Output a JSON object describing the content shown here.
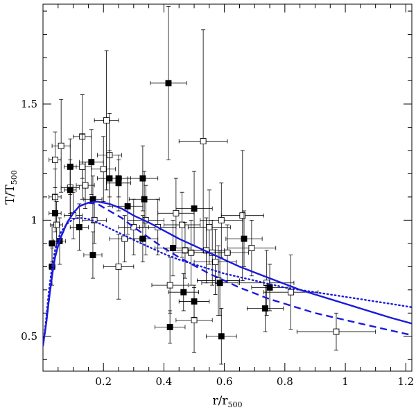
{
  "chart_data": {
    "type": "scatter",
    "title": "",
    "xlabel": "r/r",
    "xlabel_sub": "500",
    "ylabel": "T/T",
    "ylabel_sub": "500",
    "xlim": [
      0.0,
      1.22
    ],
    "ylim": [
      0.35,
      1.93
    ],
    "x_ticks": [
      {
        "v": 0.2,
        "label": "0.2"
      },
      {
        "v": 0.4,
        "label": "0.4"
      },
      {
        "v": 0.6,
        "label": "0.6"
      },
      {
        "v": 0.8,
        "label": "0.8"
      },
      {
        "v": 1.0,
        "label": "1"
      },
      {
        "v": 1.2,
        "label": "1.2"
      }
    ],
    "y_ticks": [
      {
        "v": 0.5,
        "label": "0.5"
      },
      {
        "v": 1.0,
        "label": "1"
      },
      {
        "v": 1.5,
        "label": "1.5"
      }
    ],
    "series": [
      {
        "name": "open squares",
        "style": "open",
        "points": [
          {
            "x": 0.04,
            "y": 1.26,
            "xerr": 0.02,
            "yerr": 0.12
          },
          {
            "x": 0.04,
            "y": 1.1,
            "xerr": 0.02,
            "yerr": 0.12
          },
          {
            "x": 0.045,
            "y": 0.98,
            "xerr": 0.02,
            "yerr": 0.1
          },
          {
            "x": 0.06,
            "y": 1.32,
            "xerr": 0.03,
            "yerr": 0.2
          },
          {
            "x": 0.09,
            "y": 1.14,
            "xerr": 0.03,
            "yerr": 0.12
          },
          {
            "x": 0.1,
            "y": 1.02,
            "xerr": 0.03,
            "yerr": 0.1
          },
          {
            "x": 0.13,
            "y": 1.36,
            "xerr": 0.03,
            "yerr": 0.18
          },
          {
            "x": 0.13,
            "y": 1.23,
            "xerr": 0.03,
            "yerr": 0.14
          },
          {
            "x": 0.14,
            "y": 1.15,
            "xerr": 0.03,
            "yerr": 0.1
          },
          {
            "x": 0.17,
            "y": 1.0,
            "xerr": 0.04,
            "yerr": 0.1
          },
          {
            "x": 0.2,
            "y": 1.22,
            "xerr": 0.04,
            "yerr": 0.14
          },
          {
            "x": 0.21,
            "y": 1.43,
            "xerr": 0.04,
            "yerr": 0.3
          },
          {
            "x": 0.22,
            "y": 1.28,
            "xerr": 0.04,
            "yerr": 0.18
          },
          {
            "x": 0.25,
            "y": 0.8,
            "xerr": 0.05,
            "yerr": 0.14
          },
          {
            "x": 0.27,
            "y": 0.92,
            "xerr": 0.05,
            "yerr": 0.1
          },
          {
            "x": 0.3,
            "y": 0.97,
            "xerr": 0.05,
            "yerr": 0.12
          },
          {
            "x": 0.34,
            "y": 1.0,
            "xerr": 0.06,
            "yerr": 0.15
          },
          {
            "x": 0.38,
            "y": 0.97,
            "xerr": 0.06,
            "yerr": 0.12
          },
          {
            "x": 0.42,
            "y": 0.72,
            "xerr": 0.06,
            "yerr": 0.12
          },
          {
            "x": 0.44,
            "y": 1.03,
            "xerr": 0.06,
            "yerr": 0.15
          },
          {
            "x": 0.46,
            "y": 0.98,
            "xerr": 0.06,
            "yerr": 0.14
          },
          {
            "x": 0.47,
            "y": 0.87,
            "xerr": 0.06,
            "yerr": 0.12
          },
          {
            "x": 0.49,
            "y": 0.86,
            "xerr": 0.06,
            "yerr": 0.14
          },
          {
            "x": 0.5,
            "y": 0.57,
            "xerr": 0.06,
            "yerr": 0.14
          },
          {
            "x": 0.53,
            "y": 1.34,
            "xerr": 0.08,
            "yerr": 0.48
          },
          {
            "x": 0.54,
            "y": 0.87,
            "xerr": 0.06,
            "yerr": 0.14
          },
          {
            "x": 0.55,
            "y": 0.97,
            "xerr": 0.07,
            "yerr": 0.16
          },
          {
            "x": 0.56,
            "y": 0.86,
            "xerr": 0.06,
            "yerr": 0.14
          },
          {
            "x": 0.57,
            "y": 0.82,
            "xerr": 0.07,
            "yerr": 0.14
          },
          {
            "x": 0.58,
            "y": 0.74,
            "xerr": 0.07,
            "yerr": 0.15
          },
          {
            "x": 0.59,
            "y": 1.0,
            "xerr": 0.07,
            "yerr": 0.16
          },
          {
            "x": 0.61,
            "y": 0.86,
            "xerr": 0.07,
            "yerr": 0.12
          },
          {
            "x": 0.66,
            "y": 1.02,
            "xerr": 0.07,
            "yerr": 0.28
          },
          {
            "x": 0.69,
            "y": 0.88,
            "xerr": 0.08,
            "yerr": 0.12
          },
          {
            "x": 0.74,
            "y": 0.73,
            "xerr": 0.09,
            "yerr": 0.14
          },
          {
            "x": 0.82,
            "y": 0.69,
            "xerr": 0.09,
            "yerr": 0.16
          },
          {
            "x": 0.97,
            "y": 0.52,
            "xerr": 0.13,
            "yerr": 0.08
          }
        ]
      },
      {
        "name": "filled squares",
        "style": "filled",
        "points": [
          {
            "x": 0.03,
            "y": 0.9,
            "xerr": 0.01,
            "yerr": 0.08
          },
          {
            "x": 0.03,
            "y": 0.8,
            "xerr": 0.01,
            "yerr": 0.08
          },
          {
            "x": 0.04,
            "y": 1.03,
            "xerr": 0.02,
            "yerr": 0.08
          },
          {
            "x": 0.055,
            "y": 0.91,
            "xerr": 0.02,
            "yerr": 0.1
          },
          {
            "x": 0.09,
            "y": 1.23,
            "xerr": 0.02,
            "yerr": 0.12
          },
          {
            "x": 0.09,
            "y": 1.13,
            "xerr": 0.02,
            "yerr": 0.1
          },
          {
            "x": 0.12,
            "y": 0.97,
            "xerr": 0.03,
            "yerr": 0.1
          },
          {
            "x": 0.16,
            "y": 1.25,
            "xerr": 0.04,
            "yerr": 0.14
          },
          {
            "x": 0.165,
            "y": 1.09,
            "xerr": 0.03,
            "yerr": 0.1
          },
          {
            "x": 0.165,
            "y": 0.85,
            "xerr": 0.03,
            "yerr": 0.1
          },
          {
            "x": 0.22,
            "y": 1.18,
            "xerr": 0.04,
            "yerr": 0.12
          },
          {
            "x": 0.25,
            "y": 1.16,
            "xerr": 0.04,
            "yerr": 0.12
          },
          {
            "x": 0.25,
            "y": 1.18,
            "xerr": 0.04,
            "yerr": 0.08
          },
          {
            "x": 0.28,
            "y": 1.06,
            "xerr": 0.05,
            "yerr": 0.12
          },
          {
            "x": 0.33,
            "y": 1.18,
            "xerr": 0.05,
            "yerr": 0.14
          },
          {
            "x": 0.335,
            "y": 1.09,
            "xerr": 0.05,
            "yerr": 0.12
          },
          {
            "x": 0.33,
            "y": 0.92,
            "xerr": 0.05,
            "yerr": 0.1
          },
          {
            "x": 0.415,
            "y": 1.59,
            "xerr": 0.06,
            "yerr": 0.33
          },
          {
            "x": 0.42,
            "y": 0.54,
            "xerr": 0.05,
            "yerr": 0.07
          },
          {
            "x": 0.43,
            "y": 0.88,
            "xerr": 0.06,
            "yerr": 0.12
          },
          {
            "x": 0.465,
            "y": 0.69,
            "xerr": 0.05,
            "yerr": 0.08
          },
          {
            "x": 0.5,
            "y": 1.05,
            "xerr": 0.06,
            "yerr": 0.16
          },
          {
            "x": 0.5,
            "y": 0.65,
            "xerr": 0.05,
            "yerr": 0.07
          },
          {
            "x": 0.585,
            "y": 0.73,
            "xerr": 0.06,
            "yerr": 0.14
          },
          {
            "x": 0.59,
            "y": 0.5,
            "xerr": 0.05,
            "yerr": 0.12
          },
          {
            "x": 0.665,
            "y": 0.92,
            "xerr": 0.06,
            "yerr": 0.12
          },
          {
            "x": 0.735,
            "y": 0.62,
            "xerr": 0.06,
            "yerr": 0.1
          },
          {
            "x": 0.75,
            "y": 0.71,
            "xerr": 0.06,
            "yerr": 0.1
          }
        ]
      }
    ],
    "lines": [
      {
        "name": "solid model",
        "dash": "solid",
        "points": [
          [
            0.0,
            0.46
          ],
          [
            0.01,
            0.55
          ],
          [
            0.02,
            0.66
          ],
          [
            0.03,
            0.76
          ],
          [
            0.04,
            0.84
          ],
          [
            0.05,
            0.89
          ],
          [
            0.06,
            0.93
          ],
          [
            0.08,
            0.99
          ],
          [
            0.1,
            1.03
          ],
          [
            0.12,
            1.06
          ],
          [
            0.15,
            1.075
          ],
          [
            0.18,
            1.08
          ],
          [
            0.22,
            1.07
          ],
          [
            0.26,
            1.05
          ],
          [
            0.3,
            1.02
          ],
          [
            0.35,
            0.99
          ],
          [
            0.4,
            0.955
          ],
          [
            0.45,
            0.92
          ],
          [
            0.5,
            0.89
          ],
          [
            0.55,
            0.86
          ],
          [
            0.6,
            0.83
          ],
          [
            0.65,
            0.8
          ],
          [
            0.7,
            0.775
          ],
          [
            0.75,
            0.75
          ],
          [
            0.8,
            0.725
          ],
          [
            0.85,
            0.7
          ],
          [
            0.9,
            0.68
          ],
          [
            0.95,
            0.66
          ],
          [
            1.0,
            0.64
          ],
          [
            1.05,
            0.62
          ],
          [
            1.1,
            0.6
          ],
          [
            1.15,
            0.58
          ],
          [
            1.22,
            0.555
          ]
        ]
      },
      {
        "name": "dashed model",
        "dash": "dashed",
        "points": [
          [
            0.0,
            0.46
          ],
          [
            0.01,
            0.55
          ],
          [
            0.02,
            0.66
          ],
          [
            0.03,
            0.76
          ],
          [
            0.04,
            0.84
          ],
          [
            0.05,
            0.89
          ],
          [
            0.06,
            0.93
          ],
          [
            0.08,
            0.99
          ],
          [
            0.1,
            1.03
          ],
          [
            0.12,
            1.06
          ],
          [
            0.15,
            1.075
          ],
          [
            0.18,
            1.07
          ],
          [
            0.22,
            1.04
          ],
          [
            0.26,
            1.01
          ],
          [
            0.3,
            0.97
          ],
          [
            0.35,
            0.925
          ],
          [
            0.4,
            0.88
          ],
          [
            0.45,
            0.84
          ],
          [
            0.5,
            0.805
          ],
          [
            0.55,
            0.77
          ],
          [
            0.6,
            0.74
          ],
          [
            0.65,
            0.71
          ],
          [
            0.7,
            0.685
          ],
          [
            0.75,
            0.66
          ],
          [
            0.8,
            0.64
          ],
          [
            0.85,
            0.62
          ],
          [
            0.9,
            0.6
          ],
          [
            0.95,
            0.585
          ],
          [
            1.0,
            0.57
          ],
          [
            1.05,
            0.555
          ],
          [
            1.1,
            0.54
          ],
          [
            1.15,
            0.525
          ],
          [
            1.22,
            0.505
          ]
        ]
      },
      {
        "name": "dotted model",
        "dash": "dotted",
        "points": [
          [
            0.0,
            0.46
          ],
          [
            0.01,
            0.57
          ],
          [
            0.02,
            0.7
          ],
          [
            0.03,
            0.8
          ],
          [
            0.04,
            0.87
          ],
          [
            0.05,
            0.92
          ],
          [
            0.06,
            0.95
          ],
          [
            0.08,
            0.985
          ],
          [
            0.1,
            1.005
          ],
          [
            0.12,
            1.01
          ],
          [
            0.15,
            1.005
          ],
          [
            0.18,
            0.99
          ],
          [
            0.22,
            0.965
          ],
          [
            0.26,
            0.94
          ],
          [
            0.3,
            0.915
          ],
          [
            0.35,
            0.885
          ],
          [
            0.4,
            0.855
          ],
          [
            0.45,
            0.83
          ],
          [
            0.5,
            0.81
          ],
          [
            0.55,
            0.79
          ],
          [
            0.6,
            0.77
          ],
          [
            0.65,
            0.755
          ],
          [
            0.7,
            0.74
          ],
          [
            0.75,
            0.725
          ],
          [
            0.8,
            0.71
          ],
          [
            0.85,
            0.7
          ],
          [
            0.9,
            0.69
          ],
          [
            0.95,
            0.68
          ],
          [
            1.0,
            0.67
          ],
          [
            1.05,
            0.66
          ],
          [
            1.1,
            0.65
          ],
          [
            1.15,
            0.64
          ],
          [
            1.22,
            0.625
          ]
        ]
      }
    ]
  }
}
